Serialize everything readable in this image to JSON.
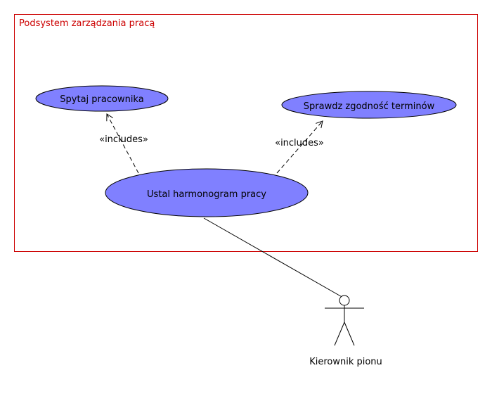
{
  "system": {
    "title": "Podsystem zarządzania pracą"
  },
  "use_cases": {
    "ask_employee": "Spytaj pracownika",
    "check_terms": "Sprawdz zgodność terminów",
    "set_schedule": "Ustal harmonogram pracy"
  },
  "relations": {
    "includes_left": "«includes»",
    "includes_right": "«includes»"
  },
  "actor": {
    "name": "Kierownik pionu"
  },
  "colors": {
    "system_border": "#cc0000",
    "system_title": "#cc0000",
    "use_case_fill": "#8080ff",
    "line": "#000000"
  }
}
